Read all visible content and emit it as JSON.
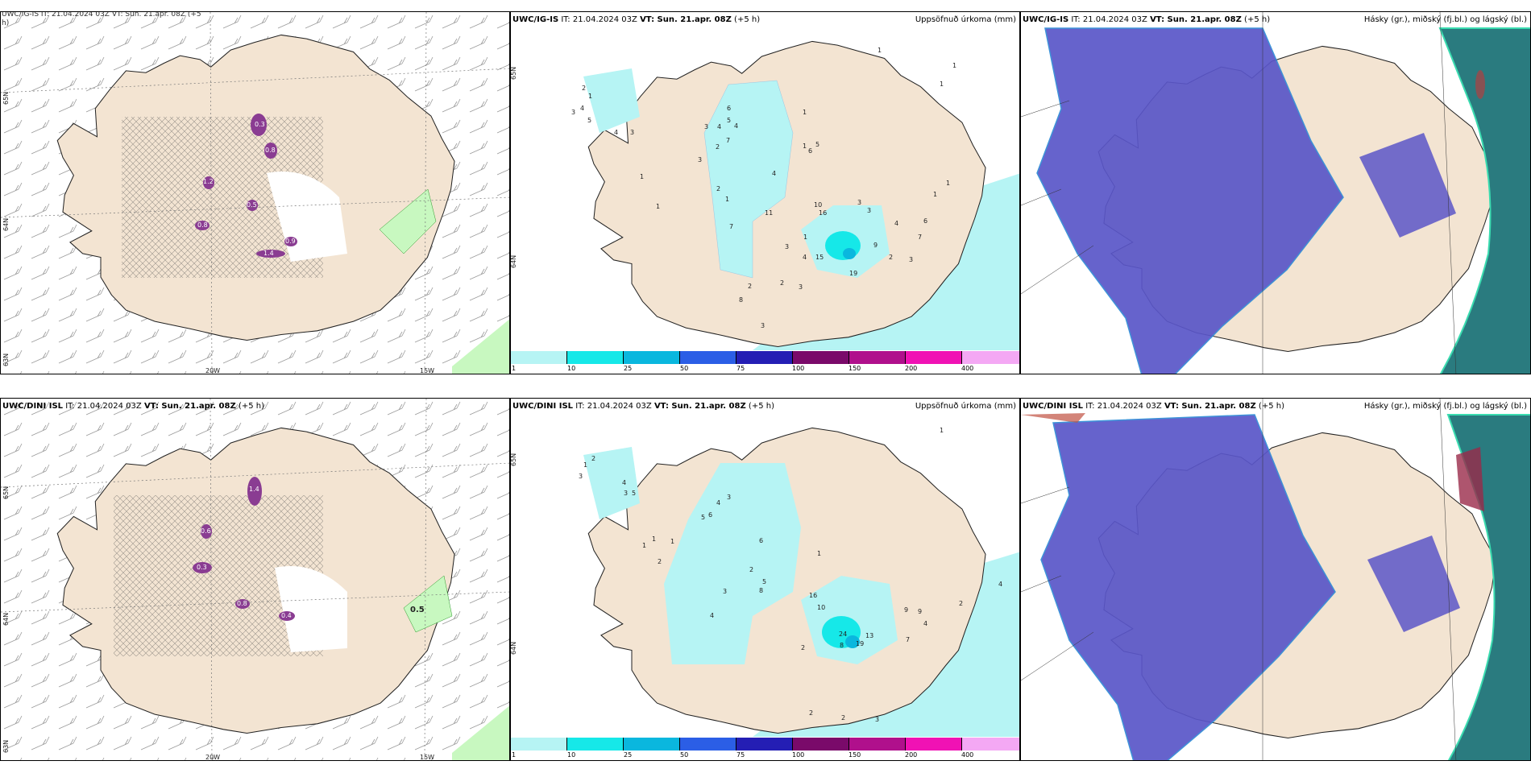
{
  "palette": {
    "land": "#f3e4d2",
    "precip_light": "#b6f4f4",
    "ocean_cloud_low": "#2a7b7f",
    "cloud_high": "#5a56c8",
    "cloud_edge": "#2e8bd6",
    "green_precip": "#c8f8c0",
    "purple_precip": "#8a3c92"
  },
  "colorbar": {
    "colors": [
      "#b6f4f4",
      "#16e8e8",
      "#0ab7de",
      "#2b5ee6",
      "#241eb4",
      "#7a0a6a",
      "#b0108c",
      "#f012b4",
      "#f4a8f4"
    ],
    "ticks": [
      "1",
      "10",
      "25",
      "50",
      "75",
      "100",
      "150",
      "200",
      "400"
    ]
  },
  "rows": [
    {
      "wind": {
        "title_partial": "UWC/IG-IS IT: 21.04.2024 03Z VT: Sun. 21.apr. 08Z (+5",
        "title_wrap": "h)",
        "lat_labels": [
          "65N",
          "64N",
          "63N"
        ],
        "lon_labels": [
          "20W",
          "15W"
        ],
        "precip_labels": [
          "0.3",
          "0.8",
          "1.2",
          "0.5",
          "0.8",
          "1.4",
          "0.9"
        ]
      },
      "precip": {
        "model": "UWC/IG-IS",
        "it": "IT: 21.04.2024 03Z",
        "vt": "VT: Sun. 21.apr. 08Z",
        "lead": "(+5 h)",
        "right": "Uppsöfnuð úrkoma (mm)",
        "lat_label": "65N",
        "lat_label2": "64N",
        "values": [
          "1",
          "2",
          "3",
          "4",
          "5",
          "3",
          "4",
          "1",
          "1",
          "2",
          "3",
          "4",
          "7",
          "6",
          "5",
          "4",
          "3",
          "2",
          "1",
          "7",
          "1",
          "1",
          "2",
          "3",
          "4",
          "5",
          "6",
          "1",
          "11",
          "16",
          "10",
          "15",
          "19",
          "9",
          "7",
          "6",
          "4",
          "3",
          "2",
          "1",
          "3",
          "3",
          "2",
          "3",
          "8",
          "3",
          "4",
          "1",
          "1",
          "1",
          "1"
        ]
      },
      "cloud": {
        "model": "UWC/IG-IS",
        "it": "IT: 21.04.2024 03Z",
        "vt": "VT: Sun. 21.apr. 08Z",
        "lead": "(+5 h)",
        "right": "Hásky (gr.), miðský (fj.bl.) og lágský (bl.)"
      }
    },
    {
      "wind": {
        "model": "UWC/DINI ISL",
        "it": "IT: 21.04.2024 03Z",
        "vt": "VT: Sun. 21.apr. 08Z",
        "lead": "(+5 h)",
        "lat_labels": [
          "65N",
          "64N",
          "63N"
        ],
        "lon_labels": [
          "20W",
          "15W"
        ],
        "green_label": "0.5",
        "precip_labels": [
          "1.4",
          "0.6",
          "0.3",
          "0.8",
          "0.4"
        ]
      },
      "precip": {
        "model": "UWC/DINI ISL",
        "it": "IT: 21.04.2024 03Z",
        "vt": "VT: Sun. 21.apr. 08Z",
        "lead": "(+5 h)",
        "right": "Uppsöfnuð úrkoma (mm)",
        "lat_label": "65N",
        "lat_label2": "64N",
        "values": [
          "1",
          "2",
          "3",
          "4",
          "5",
          "3",
          "6",
          "1",
          "2",
          "3",
          "4",
          "5",
          "1",
          "1",
          "1",
          "2",
          "3",
          "4",
          "5",
          "6",
          "8",
          "10",
          "16",
          "24",
          "19",
          "8",
          "9",
          "4",
          "2",
          "2",
          "2",
          "3",
          "9",
          "7",
          "2",
          "13",
          "4",
          "1"
        ]
      },
      "cloud": {
        "model": "UWC/DINI ISL",
        "it": "IT: 21.04.2024 03Z",
        "vt": "VT: Sun. 21.apr. 08Z",
        "lead": "(+5 h)",
        "right": "Hásky (gr.), miðský (fj.bl.) og lágský (bl.)"
      }
    }
  ]
}
